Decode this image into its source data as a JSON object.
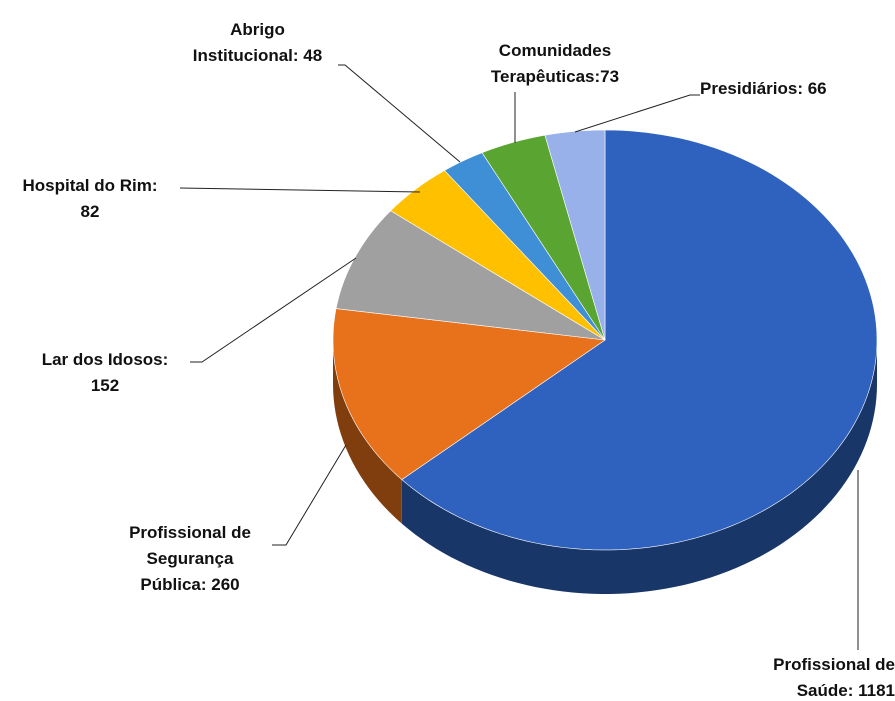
{
  "chart_data": {
    "type": "pie",
    "values": [
      1181,
      260,
      152,
      82,
      48,
      73,
      66
    ],
    "value_labels": [
      "Profissional de\nSaúde: 1181",
      "Profissional de\nSegurança\nPública: 260",
      "Lar dos Idosos:\n152",
      "Hospital do Rim:\n82",
      "Abrigo\nInstitucional: 48",
      "Comunidades\nTerapêuticas:73",
      "Presidiários: 66"
    ],
    "colors": [
      "#2e62be",
      "#e8711b",
      "#a0a0a0",
      "#ffc000",
      "#3f8fd6",
      "#5aa532",
      "#99b1ea"
    ]
  }
}
